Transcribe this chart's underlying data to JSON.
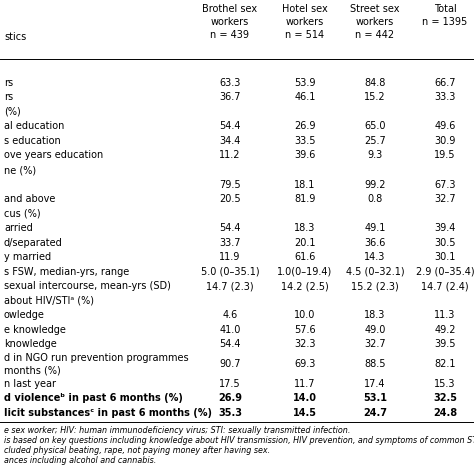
{
  "col_headers": [
    "Brothel sex\nworkers\nn = 439",
    "Hotel sex\nworkers\nn = 514",
    "Street sex\nworkers\nn = 442",
    "Total\nn = 1395"
  ],
  "row_labels": [
    "",
    "rs",
    "rs",
    "(%)",
    "al education",
    "s education",
    "ove years education",
    "ne (%)",
    "",
    "and above",
    "cus (%)",
    "arried",
    "d/separated",
    "y married",
    "s FSW, median-yrs, range",
    "sexual intercourse, mean-yrs (SD)",
    "about HIV/STIᵃ (%)",
    "owledge",
    "e knowledge",
    "knowledge",
    "d in NGO run prevention programmes\nmonths (%)",
    "n last year",
    "d violenceᵇ in past 6 months (%)",
    "licit substancesᶜ in past 6 months (%)"
  ],
  "data_rows": [
    [
      "",
      "",
      "",
      ""
    ],
    [
      "63.3",
      "53.9",
      "84.8",
      "66.7"
    ],
    [
      "36.7",
      "46.1",
      "15.2",
      "33.3"
    ],
    [
      "",
      "",
      "",
      ""
    ],
    [
      "54.4",
      "26.9",
      "65.0",
      "49.6"
    ],
    [
      "34.4",
      "33.5",
      "25.7",
      "30.9"
    ],
    [
      "11.2",
      "39.6",
      "9.3",
      "19.5"
    ],
    [
      "",
      "",
      "",
      ""
    ],
    [
      "79.5",
      "18.1",
      "99.2",
      "67.3"
    ],
    [
      "20.5",
      "81.9",
      "0.8",
      "32.7"
    ],
    [
      "",
      "",
      "",
      ""
    ],
    [
      "54.4",
      "18.3",
      "49.1",
      "39.4"
    ],
    [
      "33.7",
      "20.1",
      "36.6",
      "30.5"
    ],
    [
      "11.9",
      "61.6",
      "14.3",
      "30.1"
    ],
    [
      "5.0 (0–35.1)",
      "1.0(0–19.4)",
      "4.5 (0–32.1)",
      "2.9 (0–35.4)"
    ],
    [
      "14.7 (2.3)",
      "14.2 (2.5)",
      "15.2 (2.3)",
      "14.7 (2.4)"
    ],
    [
      "",
      "",
      "",
      ""
    ],
    [
      "4.6",
      "10.0",
      "18.3",
      "11.3"
    ],
    [
      "41.0",
      "57.6",
      "49.0",
      "49.2"
    ],
    [
      "54.4",
      "32.3",
      "32.7",
      "39.5"
    ],
    [
      "90.7",
      "69.3",
      "88.5",
      "82.1"
    ],
    [
      "17.5",
      "11.7",
      "17.4",
      "15.3"
    ],
    [
      "26.9",
      "14.0",
      "53.1",
      "32.5"
    ],
    [
      "35.3",
      "14.5",
      "24.7",
      "24.8"
    ]
  ],
  "bold_rows": [
    22,
    23
  ],
  "footnotes": [
    "e sex worker; HIV: human immunodeficiency virus; STI: sexually transmitted infection.",
    "is based on key questions including knowledge about HIV transmission, HIV prevention, and symptoms of common STIs oth",
    "cluded physical beating, rape, not paying money after having sex.",
    "ances including alcohol and cannabis."
  ],
  "header_left_label": "stics",
  "bg_color": "#ffffff",
  "text_color": "#000000"
}
